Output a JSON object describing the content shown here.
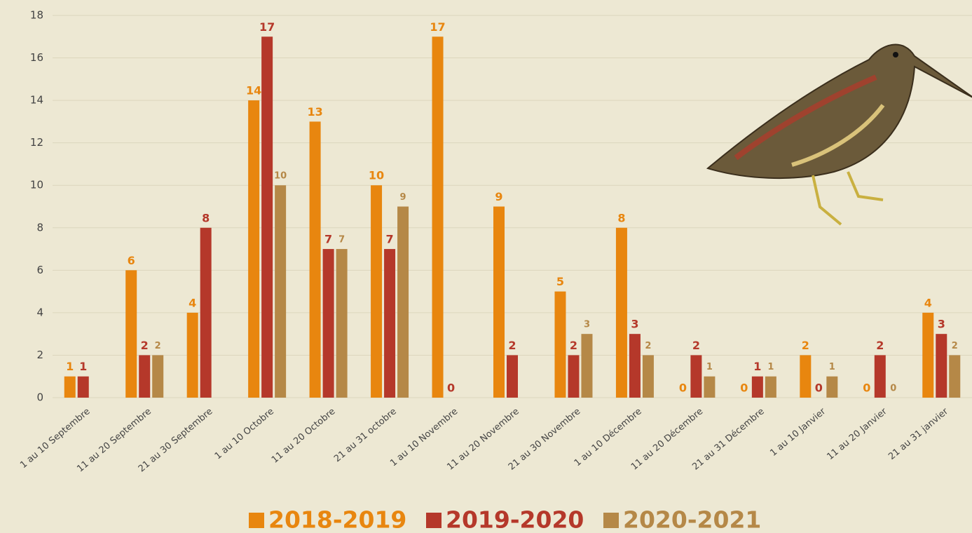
{
  "chart_data": {
    "type": "bar",
    "categories": [
      "1 au 10 Septembre",
      "11 au 20 Septembre",
      "21 au 30 Septembre",
      "1 au 10 Octobre",
      "11 au 20 Octobre",
      "21 au 31 octobre",
      "1 au 10 Novembre",
      "11 au 20 Novembre",
      "21 au 30 Novembre",
      "1 au 10 Décembre",
      "11 au 20 Décembre",
      "21 au 31 Décembre",
      "1 au 10 Janvier",
      "11 au 20 Janvier",
      "21 au 31 janvier"
    ],
    "series": [
      {
        "name": "2018-2019",
        "color": "#e8860f",
        "values": [
          1,
          6,
          4,
          14,
          13,
          10,
          17,
          9,
          5,
          8,
          0,
          0,
          2,
          0,
          4
        ]
      },
      {
        "name": "2019-2020",
        "color": "#b5382a",
        "values": [
          1,
          2,
          8,
          17,
          7,
          7,
          0,
          2,
          2,
          3,
          2,
          1,
          0,
          2,
          3
        ]
      },
      {
        "name": "2020-2021",
        "color": "#b58847",
        "values": [
          null,
          2,
          null,
          10,
          7,
          9,
          null,
          null,
          3,
          2,
          1,
          1,
          1,
          0,
          2
        ]
      }
    ],
    "ylim": [
      0,
      18
    ],
    "yticks": [
      0,
      2,
      4,
      6,
      8,
      10,
      12,
      14,
      16,
      18
    ],
    "grid": true,
    "data_labels": true,
    "legend": "bottom"
  }
}
